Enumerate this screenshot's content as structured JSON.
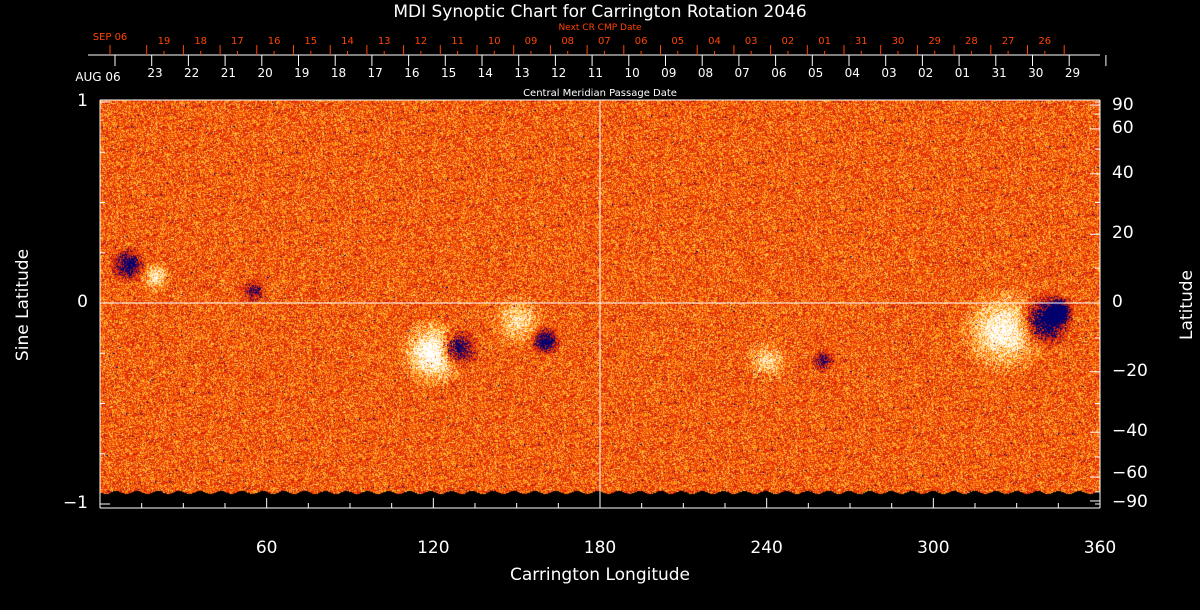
{
  "chart_data": {
    "type": "heatmap",
    "title": "MDI Synoptic Chart for Carrington Rotation 2046",
    "xlabel": "Carrington Longitude",
    "ylabel": "Sine Latitude",
    "ylabel_right": "Latitude",
    "xlim": [
      0,
      360
    ],
    "ylim": [
      -1,
      1
    ],
    "x_ticks": [
      60,
      120,
      180,
      240,
      300,
      360
    ],
    "y_ticks": [
      "1",
      "0",
      "−1"
    ],
    "y_ticks_values": [
      1,
      0,
      -1
    ],
    "right_ticks": [
      "90",
      "60",
      "40",
      "20",
      "0",
      "−20",
      "−40",
      "−60",
      "−90"
    ],
    "right_ticks_values": [
      90,
      60,
      40,
      20,
      0,
      -20,
      -40,
      -60,
      -90
    ],
    "top_axis_label": "Central Meridian Passage Date",
    "top_axis_start": "AUG 06",
    "top_axis_dates": [
      "23",
      "22",
      "21",
      "20",
      "19",
      "18",
      "17",
      "16",
      "15",
      "14",
      "13",
      "12",
      "11",
      "10",
      "09",
      "08",
      "07",
      "06",
      "05",
      "04",
      "03",
      "02",
      "01",
      "31",
      "30",
      "29"
    ],
    "next_cr_label": "Next CR CMP Date",
    "next_cr_start": "SEP 06",
    "next_cr_dates": [
      "19",
      "18",
      "17",
      "16",
      "15",
      "14",
      "13",
      "12",
      "11",
      "10",
      "09",
      "08",
      "07",
      "06",
      "05",
      "04",
      "03",
      "02",
      "01",
      "31",
      "30",
      "29",
      "28",
      "27",
      "26"
    ],
    "colors": {
      "background": "#ff5000",
      "positive": "#ffffff",
      "negative": "#000060",
      "accent_text": "#ff4500"
    },
    "grid": "lines at longitude 180 and latitude 0"
  }
}
